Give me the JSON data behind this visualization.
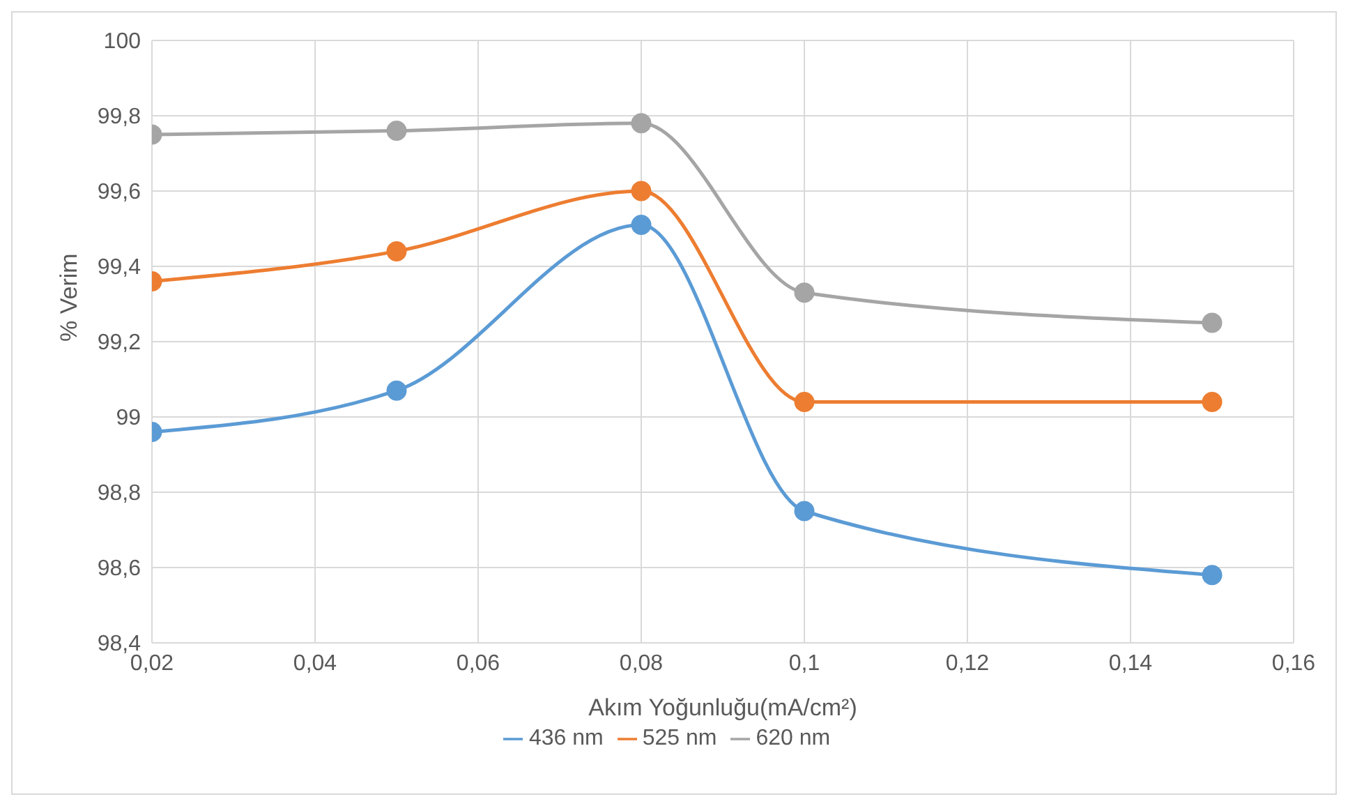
{
  "chart_data": {
    "type": "line",
    "xlabel": "Akım Yoğunluğu(mA/cm²)",
    "ylabel": "% Verim",
    "x": [
      0.02,
      0.05,
      0.08,
      0.1,
      0.15
    ],
    "series": [
      {
        "name": "436 nm",
        "color": "#5b9bd5",
        "values": [
          98.96,
          99.07,
          99.51,
          98.75,
          98.58
        ]
      },
      {
        "name": "525 nm",
        "color": "#ed7d31",
        "values": [
          99.36,
          99.44,
          99.6,
          99.04,
          99.04
        ]
      },
      {
        "name": "620 nm",
        "color": "#a5a5a5",
        "values": [
          99.75,
          99.76,
          99.78,
          99.33,
          99.25
        ]
      }
    ],
    "xlim": [
      0.02,
      0.16
    ],
    "xticks": [
      {
        "value": 0.02,
        "label": "0,02"
      },
      {
        "value": 0.04,
        "label": "0,04"
      },
      {
        "value": 0.06,
        "label": "0,06"
      },
      {
        "value": 0.08,
        "label": "0,08"
      },
      {
        "value": 0.1,
        "label": "0,1"
      },
      {
        "value": 0.12,
        "label": "0,12"
      },
      {
        "value": 0.14,
        "label": "0,14"
      },
      {
        "value": 0.16,
        "label": "0,16"
      }
    ],
    "ylim": [
      98.4,
      100
    ],
    "yticks": [
      {
        "value": 98.4,
        "label": "98,4"
      },
      {
        "value": 98.6,
        "label": "98,6"
      },
      {
        "value": 98.8,
        "label": "98,8"
      },
      99,
      {
        "value": 99.2,
        "label": "99,2"
      },
      {
        "value": 99.4,
        "label": "99,4"
      },
      {
        "value": 99.6,
        "label": "99,6"
      },
      {
        "value": 99.8,
        "label": "99,8"
      },
      100
    ],
    "grid": true,
    "legend": "bottom",
    "marker": "circle",
    "line_style": "solid"
  }
}
